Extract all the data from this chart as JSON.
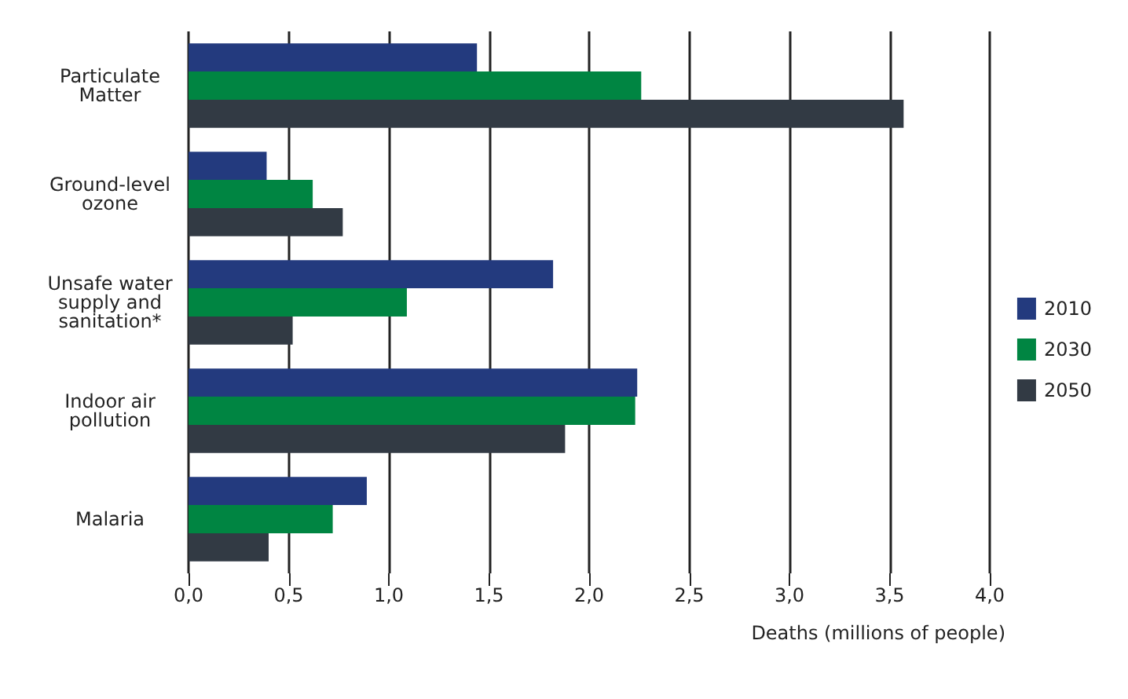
{
  "chart_data": {
    "type": "bar",
    "orientation": "horizontal",
    "xlabel": "Deaths (millions of people)",
    "categories": [
      "Particulate\nMatter",
      "Ground-level\nozone",
      "Unsafe water\nsupply and\nsanitation*",
      "Indoor air\npollution",
      "Malaria"
    ],
    "series": [
      {
        "name": "2010",
        "color": "#233a7e",
        "values": [
          1.44,
          0.39,
          1.82,
          2.24,
          0.89
        ]
      },
      {
        "name": "2030",
        "color": "#008542",
        "values": [
          2.26,
          0.62,
          1.09,
          2.23,
          0.72
        ]
      },
      {
        "name": "2050",
        "color": "#323a44",
        "values": [
          3.57,
          0.77,
          0.52,
          1.88,
          0.4
        ]
      }
    ],
    "xlim": [
      0,
      4
    ],
    "xticks": [
      {
        "value": 0,
        "label": "0,0"
      },
      {
        "value": 0.5,
        "label": "0,5"
      },
      {
        "value": 1,
        "label": "1,0"
      },
      {
        "value": 1.5,
        "label": "1,5"
      },
      {
        "value": 2,
        "label": "2,0"
      },
      {
        "value": 2.5,
        "label": "2,5"
      },
      {
        "value": 3,
        "label": "3,0"
      },
      {
        "value": 3.5,
        "label": "3,5"
      },
      {
        "value": 4,
        "label": "4,0"
      }
    ],
    "grid": "x",
    "legend": "right"
  }
}
